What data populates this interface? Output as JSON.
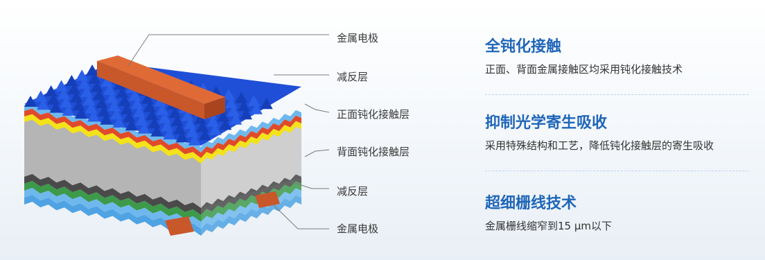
{
  "diagram": {
    "labels": {
      "metal_electrode_top": "金属电极",
      "anti_reflection_top": "减反层",
      "front_passivation": "正面钝化接触层",
      "back_passivation": "背面钝化接触层",
      "anti_reflection_bottom": "减反层",
      "metal_electrode_bottom": "金属电极"
    },
    "colors": {
      "texture_blue": "#1f4fd6",
      "electrode_orange": "#c8582a",
      "silicon_gray": "#bdbdbd",
      "front_yellow": "#f4e21a",
      "front_red": "#e04a2a",
      "back_green": "#3c9a4a",
      "back_dark": "#4a4a4a",
      "light_blue": "#6fb8ee"
    }
  },
  "features": [
    {
      "title": "全钝化接触",
      "desc": "正面、背面金属接触区均采用钝化接触技术"
    },
    {
      "title": "抑制光学寄生吸收",
      "desc": "采用特殊结构和工艺，降低钝化接触层的寄生吸收"
    },
    {
      "title": "超细栅线技术",
      "desc": "金属栅线缩窄到15 μm以下"
    }
  ],
  "colors": {
    "title_blue": "#1f66b8",
    "divider": "#b9d3ee"
  }
}
